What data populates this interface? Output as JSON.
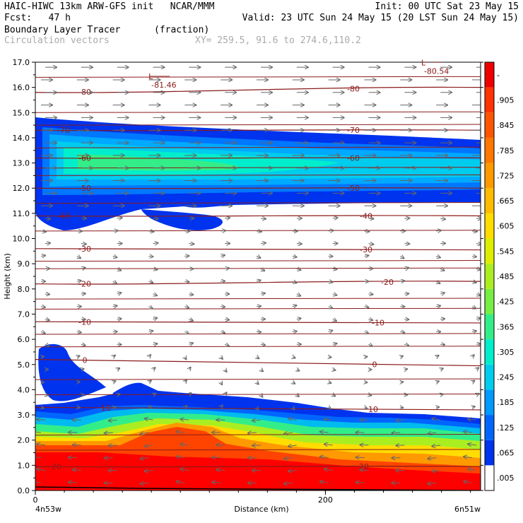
{
  "header": {
    "line1_left": "HAIC-HIWC 13km ARW-GFS init   NCAR/MMM",
    "line1_right": "Init: 00 UTC Sat 23 May 15",
    "line2_left": "Fcst:   47 h",
    "line2_right": "Valid: 23 UTC Sun 24 May 15 (20 LST Sun 24 May 15)",
    "line3_left": "Boundary Layer Tracer",
    "line3_units": "(fraction)",
    "line4_left": "Circulation vectors",
    "line4_xy": "XY= 259.5, 91.6 to 274.6,110.2"
  },
  "chart_data": {
    "type": "heatmap",
    "xlabel": "Distance (km)",
    "ylabel": "Height (km)",
    "xlim": [
      0,
      307
    ],
    "ylim": [
      0,
      17
    ],
    "x_ticks": [
      0,
      200
    ],
    "y_ticks": [
      "0.0",
      "1.0",
      "2.0",
      "3.0",
      "4.0",
      "5.0",
      "6.0",
      "7.0",
      "8.0",
      "9.0",
      "10.0",
      "11.0",
      "12.0",
      "13.0",
      "14.0",
      "15.0",
      "16.0",
      "17.0"
    ],
    "x_left_label": "4n53w",
    "x_right_label": "6n51w",
    "colorbar_labels": [
      ".005",
      ".065",
      ".125",
      ".185",
      ".245",
      ".305",
      ".365",
      ".425",
      ".485",
      ".545",
      ".605",
      ".665",
      ".725",
      ".785",
      ".845",
      ".905",
      "-"
    ],
    "colorbar_colors": [
      "#ffffff",
      "#0033ee",
      "#0066ff",
      "#0099ff",
      "#00ccee",
      "#00eecc",
      "#33ee88",
      "#77ee44",
      "#aaee22",
      "#ddee00",
      "#ffdd00",
      "#ffbb00",
      "#ff9900",
      "#ff7700",
      "#ff5500",
      "#ff3300",
      "#ee0000"
    ],
    "temp_contours": [
      {
        "label": "20",
        "y0": 0.95,
        "y1": 0.95,
        "lx": [
          80,
          515
        ]
      },
      {
        "label": "10",
        "y0": 3.3,
        "y1": 3.2,
        "lx": [
          150,
          528
        ]
      },
      {
        "label": "0",
        "y0": 5.2,
        "y1": 4.95,
        "lx": [
          120,
          530
        ]
      },
      {
        "label": "-10",
        "y0": 6.7,
        "y1": 6.65,
        "lx": [
          120,
          535
        ]
      },
      {
        "label": "-20",
        "y0": 8.2,
        "y1": 8.3,
        "lx": [
          120,
          548
        ]
      },
      {
        "label": "-30",
        "y0": 9.6,
        "y1": 9.55,
        "lx": [
          120,
          518
        ]
      },
      {
        "label": "-40",
        "y0": 10.9,
        "y1": 10.9,
        "lx": [
          90,
          518
        ]
      },
      {
        "label": "-50",
        "y0": 12.0,
        "y1": 12.0,
        "lx": [
          120,
          500
        ]
      },
      {
        "label": "-60",
        "y0": 13.2,
        "y1": 13.2,
        "lx": [
          120,
          500
        ]
      },
      {
        "label": "-70",
        "y0": 14.3,
        "y1": 14.3,
        "lx": [
          90,
          500
        ]
      },
      {
        "label": "-80",
        "y0": 15.8,
        "y1": 16.0,
        "lx": [
          120,
          500
        ]
      }
    ],
    "extra_contour_lines_km": [
      1.6,
      2.2,
      3.8,
      4.4,
      5.7,
      6.2,
      7.2,
      7.6,
      8.8,
      9.1,
      10.3,
      11.4,
      12.5,
      12.8,
      13.6,
      14.5,
      15.0,
      16.4
    ],
    "minima": [
      {
        "label": "L",
        "value": "-81.46",
        "x_km": 80,
        "y_km": 16.05
      },
      {
        "label": "L",
        "value": "-80.54",
        "x_km": 268,
        "y_km": 16.6
      }
    ]
  }
}
